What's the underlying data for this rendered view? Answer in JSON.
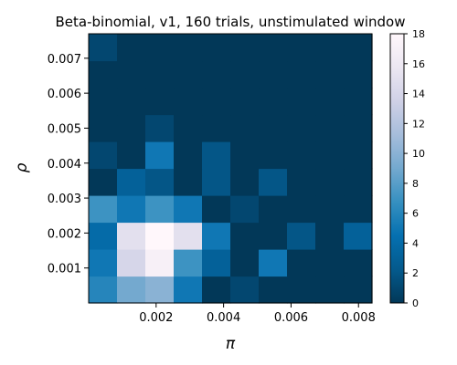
{
  "chart_data": {
    "type": "heatmap",
    "title": "Beta-binomial, v1, 160 trials, unstimulated window",
    "xlabel": "π",
    "ylabel": "ρ",
    "x_range": [
      0,
      0.0084
    ],
    "y_range": [
      0,
      0.0077
    ],
    "x_ticks": [
      0.002,
      0.004,
      0.006,
      0.008
    ],
    "x_tick_labels": [
      "0.002",
      "0.004",
      "0.006",
      "0.008"
    ],
    "y_ticks": [
      0.001,
      0.002,
      0.003,
      0.004,
      0.005,
      0.006,
      0.007
    ],
    "y_tick_labels": [
      "0.001",
      "0.002",
      "0.003",
      "0.004",
      "0.005",
      "0.006",
      "0.007"
    ],
    "colorbar": {
      "min": 0,
      "max": 18,
      "ticks": [
        0,
        2,
        4,
        6,
        8,
        10,
        12,
        14,
        16,
        18
      ],
      "tick_labels": [
        "0",
        "2",
        "4",
        "6",
        "8",
        "10",
        "12",
        "14",
        "16",
        "18"
      ],
      "colormap": "PuBu_r",
      "colors": [
        "#023858",
        "#045a8d",
        "#0570b0",
        "#3690c0",
        "#74a9cf",
        "#a6bddb",
        "#d0d1e6",
        "#ece7f2",
        "#fff7fb"
      ]
    },
    "grid": false,
    "legend": "none",
    "n_cols": 10,
    "n_rows": 10,
    "cells_bottom_to_top": [
      [
        6,
        9,
        10,
        5,
        0,
        1,
        0,
        0,
        0,
        0
      ],
      [
        5,
        14,
        17,
        7,
        3,
        0,
        5,
        0,
        0,
        0
      ],
      [
        4,
        15,
        18,
        15,
        5,
        0,
        0,
        2,
        0,
        3
      ],
      [
        7,
        5,
        7,
        5,
        0,
        1,
        0,
        0,
        0,
        0
      ],
      [
        0,
        3,
        2,
        0,
        2,
        0,
        2,
        0,
        0,
        0
      ],
      [
        1,
        0,
        5,
        0,
        2,
        0,
        0,
        0,
        0,
        0
      ],
      [
        0,
        0,
        1,
        0,
        0,
        0,
        0,
        0,
        0,
        0
      ],
      [
        0,
        0,
        0,
        0,
        0,
        0,
        0,
        0,
        0,
        0
      ],
      [
        0,
        0,
        0,
        0,
        0,
        0,
        0,
        0,
        0,
        0
      ],
      [
        1,
        0,
        0,
        0,
        0,
        0,
        0,
        0,
        0,
        0
      ]
    ]
  }
}
